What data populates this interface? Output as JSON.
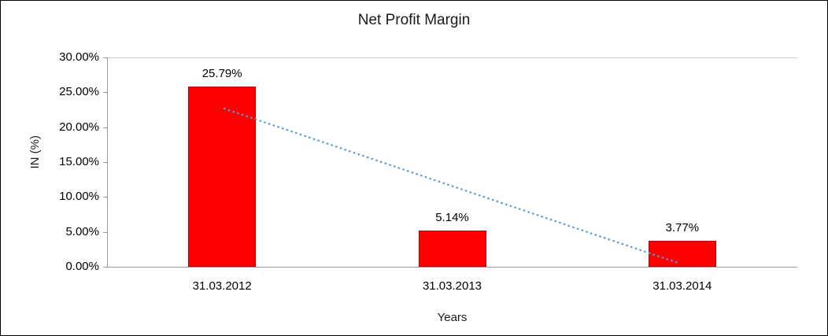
{
  "chart_data": {
    "type": "bar",
    "title": "Net Profit Margin",
    "xlabel": "Years",
    "ylabel": "IN (%)",
    "categories": [
      "31.03.2012",
      "31.03.2013",
      "31.03.2014"
    ],
    "values": [
      25.79,
      5.14,
      3.77
    ],
    "data_labels": [
      "25.79%",
      "5.14%",
      "3.77%"
    ],
    "ylim": [
      0,
      30
    ],
    "yticks": [
      {
        "label": "30.00%",
        "value": 30
      },
      {
        "label": "25.00%",
        "value": 25
      },
      {
        "label": "20.00%",
        "value": 20
      },
      {
        "label": "15.00%",
        "value": 15
      },
      {
        "label": "10.00%",
        "value": 10
      },
      {
        "label": "5.00%",
        "value": 5
      },
      {
        "label": "0.00%",
        "value": 0
      }
    ],
    "bar_color": "#ff0000",
    "bar_border_color": "#c00000",
    "legend": "none",
    "grid": "top-line-only",
    "trendline": {
      "type": "linear",
      "style": "dotted",
      "color": "#5b9bd5",
      "start_value": 22.7,
      "end_value": 0.5
    }
  }
}
